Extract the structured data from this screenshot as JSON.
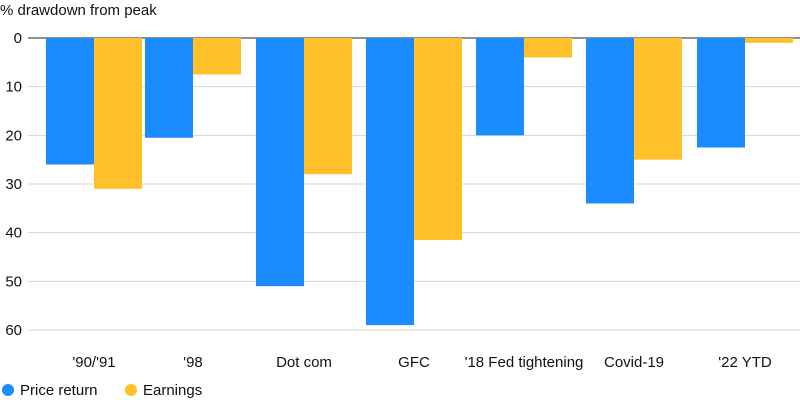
{
  "chart_data": {
    "type": "bar",
    "title": "% drawdown from peak",
    "categories": [
      "'90/'91",
      "'98",
      "Dot com",
      "GFC",
      "'18 Fed tightening",
      "Covid-19",
      "'22 YTD"
    ],
    "series": [
      {
        "name": "Price return",
        "color": "#1a8cff",
        "values": [
          26,
          20.5,
          51,
          59,
          20,
          34,
          22.5
        ]
      },
      {
        "name": "Earnings",
        "color": "#ffc02a",
        "values": [
          31,
          7.5,
          28,
          41.5,
          4,
          25,
          1
        ]
      }
    ],
    "yaxis": {
      "ticks": [
        0,
        10,
        20,
        30,
        40,
        50,
        60
      ],
      "ylim": [
        0,
        60
      ],
      "inverted": true
    },
    "grid": true,
    "legend": "bottom-left"
  }
}
